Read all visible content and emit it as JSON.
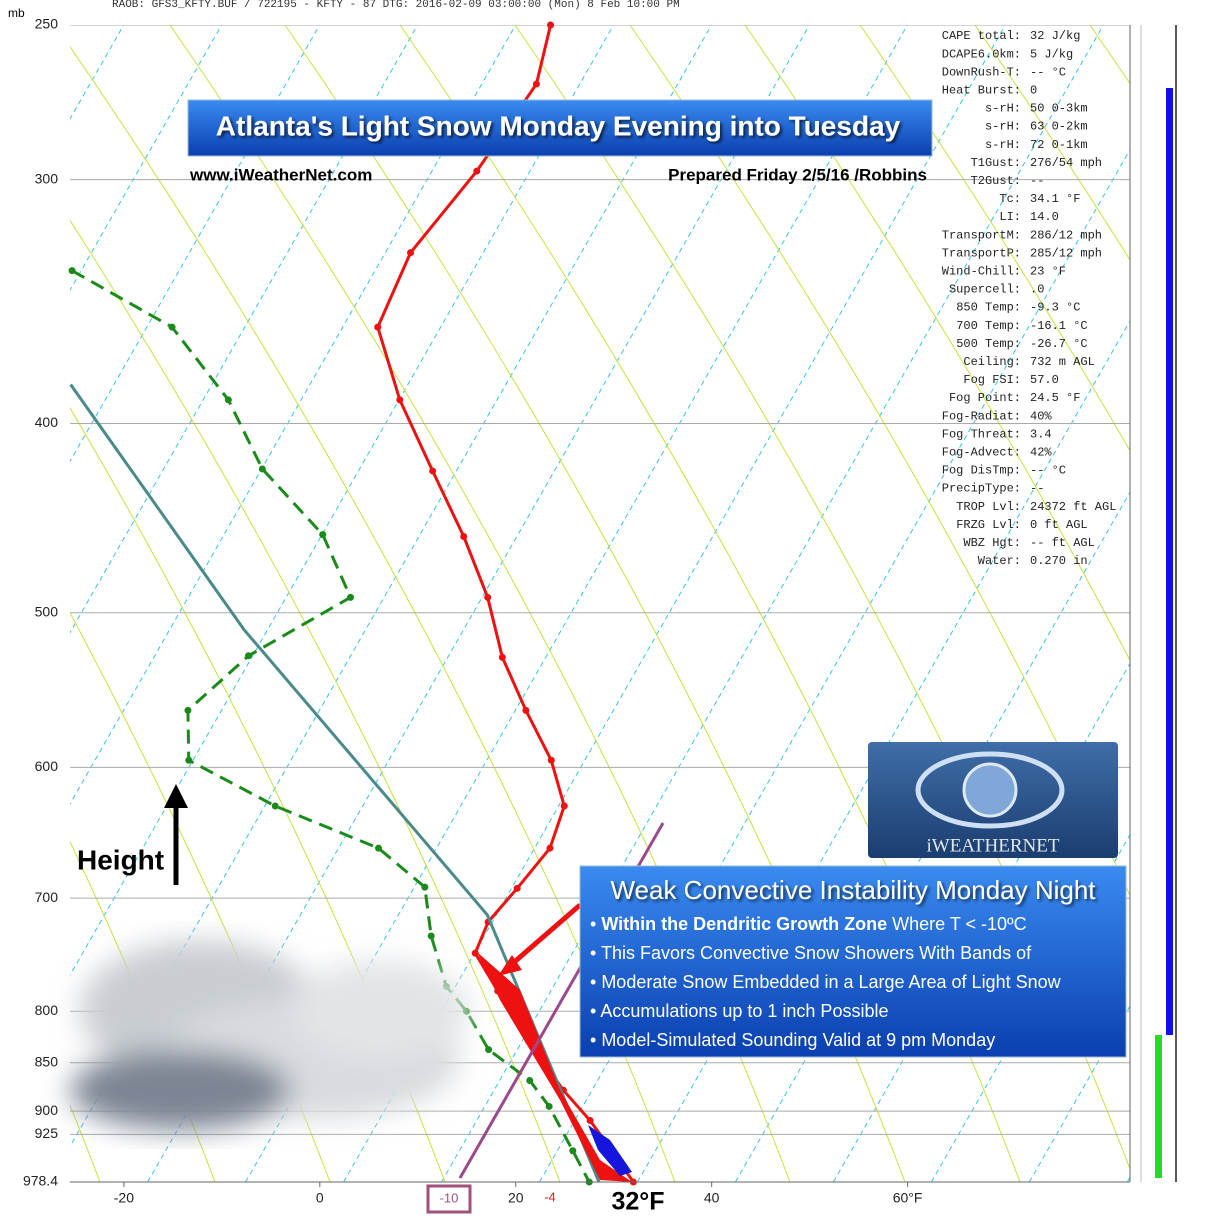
{
  "chart_data": {
    "type": "skewt",
    "header": "RAOB:  GFS3_KFTY.BUF / 722195 - KFTY - 87 DTG: 2016-02-09 03:00:00 (Mon) 8 Feb 10:00 PM",
    "title": "Atlanta's Light Snow Monday Evening into Tuesday",
    "site": "www.iWeatherNet.com",
    "prepared": "Prepared Friday 2/5/16  /Robbins",
    "y_label": "mb",
    "log_y": true,
    "ylim": [
      250,
      978.4
    ],
    "yticks": [
      250,
      300,
      400,
      500,
      600,
      700,
      800,
      850,
      900,
      925,
      978.4
    ],
    "xlim": [
      -25.5,
      82.7
    ],
    "xticks": [
      -20,
      0,
      20,
      40,
      {
        "value": 60,
        "label": "60°F"
      }
    ],
    "grid": true,
    "series": [
      {
        "color": "#ee1111",
        "dashed": false,
        "dots": true,
        "pressure": [
          250,
          268,
          297,
          327,
          357,
          389,
          423,
          457,
          491,
          527,
          561,
          595,
          628,
          660,
          692,
          720,
          747,
          781,
          828,
          878,
          910,
          943,
          978.4
        ],
        "values": [
          -44,
          -42,
          -43,
          -45,
          -44,
          -37.5,
          -30,
          -23,
          -17,
          -12,
          -6.5,
          -1,
          3,
          4,
          3,
          2,
          2.5,
          7,
          13,
          19.5,
          24,
          28,
          32
        ]
      },
      {
        "color": "#1a8a1a",
        "dashed": true,
        "dots": true,
        "pressure": [
          334,
          357,
          389,
          422,
          456,
          491,
          526,
          561,
          595,
          628,
          660,
          691,
          732,
          777,
          800,
          837,
          868,
          895,
          943,
          978.4
        ],
        "values": [
          -78.5,
          -65,
          -55,
          -47.5,
          -37.5,
          -31,
          -38,
          -41,
          -38,
          -26.5,
          -13.5,
          -6.5,
          -3,
          1.5,
          5,
          9.5,
          15.5,
          19,
          24,
          27.5
        ]
      },
      {
        "color": "#4a8a8a",
        "dashed": false,
        "dots": false,
        "pressure": [
          382,
          510,
          714,
          978.4
        ],
        "values": [
          -72,
          -40,
          1.5,
          28.5
        ]
      }
    ],
    "isotherm_labels": {
      "minus10": "-10",
      "minus4": "-4",
      "surface": "32°F"
    },
    "height_label": "Height",
    "logo": "iWEATHERNET",
    "box_title": "Weak Convective Instability Monday Night",
    "bullets": [
      {
        "bold": "Within the Dendritic Growth Zone",
        "text": " Where T < -10ºC"
      },
      {
        "text": "This Favors Convective Snow Showers With Bands of"
      },
      {
        "text": "Moderate Snow Embedded in a Large Area of Light Snow"
      },
      {
        "text": "Accumulations up to 1 inch Possible"
      },
      {
        "text": "Model-Simulated Sounding Valid at 9 pm Monday"
      }
    ],
    "stats": [
      {
        "label": "CAPE total:",
        "value": "32 J/kg"
      },
      {
        "label": "DCAPE6.0km:",
        "value": " 5 J/kg"
      },
      {
        "label": "DownRush-T:",
        "value": "-- °C"
      },
      {
        "label": "Heat Burst:",
        "value": " 0"
      },
      {
        "label": "s-rH:",
        "value": "50  0-3km"
      },
      {
        "label": "s-rH:",
        "value": "63  0-2km"
      },
      {
        "label": "s-rH:",
        "value": "72  0-1km"
      },
      {
        "label": "T1Gust:",
        "value": "276/54 mph"
      },
      {
        "label": "T2Gust:",
        "value": "--"
      },
      {
        "label": "Tc:",
        "value": "34.1 °F"
      },
      {
        "label": "LI:",
        "value": "14.0"
      },
      {
        "label": "TransportM:",
        "value": "286/12 mph"
      },
      {
        "label": "TransportP:",
        "value": "285/12 mph"
      },
      {
        "label": "Wind-Chill:",
        "value": "23 °F"
      },
      {
        "label": "Supercell:",
        "value": " .0"
      },
      {
        "label": "850 Temp:",
        "value": "-9.3 °C"
      },
      {
        "label": "700 Temp:",
        "value": "-16.1 °C"
      },
      {
        "label": "500 Temp:",
        "value": "-26.7 °C"
      },
      {
        "label": "Ceiling:",
        "value": "732 m AGL"
      },
      {
        "label": "Fog FSI:",
        "value": "57.0"
      },
      {
        "label": "Fog Point:",
        "value": "24.5 °F"
      },
      {
        "label": "Fog-Radiat:",
        "value": "40%"
      },
      {
        "label": "Fog Threat:",
        "value": "3.4"
      },
      {
        "label": "Fog-Advect:",
        "value": "42%"
      },
      {
        "label": "Fog DisTmp:",
        "value": "-- °C"
      },
      {
        "label": "PrecipType:",
        "value": "--"
      },
      {
        "label": "TROP Lvl:",
        "value": "24372 ft AGL"
      },
      {
        "label": "FRZG Lvl:",
        "value": "0 ft AGL"
      },
      {
        "label": "WBZ Hgt:",
        "value": "-- ft AGL"
      },
      {
        "label": "Water:",
        "value": "0.270 in"
      }
    ]
  }
}
